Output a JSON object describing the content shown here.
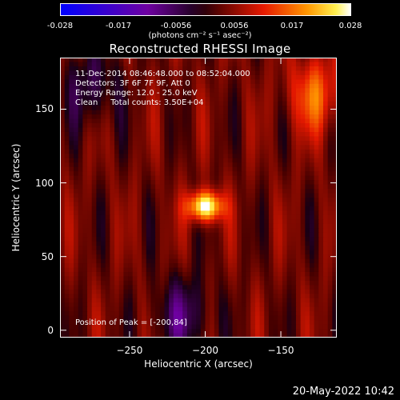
{
  "colorbar": {
    "ticks": [
      "-0.028",
      "-0.017",
      "-0.0056",
      "0.0056",
      "0.017",
      "0.028"
    ],
    "units": "(photons cm⁻² s⁻¹ asec⁻²)",
    "range": [
      -0.028,
      0.028
    ]
  },
  "title": "Reconstructed RHESSI Image",
  "info": {
    "line1": "11-Dec-2014 08:46:48.000 to 08:52:04.000",
    "line2": "Detectors: 3F 6F 7F 9F, Att 0",
    "line3": "Energy Range: 12.0 - 25.0 keV",
    "line4": "Clean     Total counts: 3.50E+04",
    "peak": "Position of Peak = [-200,84]"
  },
  "footer": "20-May-2022 10:42",
  "chart_data": {
    "type": "heatmap",
    "title": "Reconstructed RHESSI Image",
    "xlabel": "Heliocentric X (arcsec)",
    "ylabel": "Heliocentric Y (arcsec)",
    "xlim": [
      -296,
      -113
    ],
    "ylim": [
      -5,
      185
    ],
    "xticks": [
      -250,
      -200,
      -150
    ],
    "yticks": [
      0,
      50,
      100,
      150
    ],
    "colorscale": "hot/blue",
    "peak_position": [
      -200,
      84
    ],
    "peak_value": 0.028,
    "features": [
      {
        "kind": "peak",
        "x": -200,
        "y": 84,
        "value": 0.028
      },
      {
        "kind": "positive_lobe",
        "x": -127,
        "y": 160,
        "value": 0.012
      },
      {
        "kind": "negative_lobe",
        "x": -215,
        "y": 10,
        "value": -0.01
      },
      {
        "kind": "negative_lobe",
        "x": -275,
        "y": 165,
        "value": -0.008
      }
    ]
  }
}
